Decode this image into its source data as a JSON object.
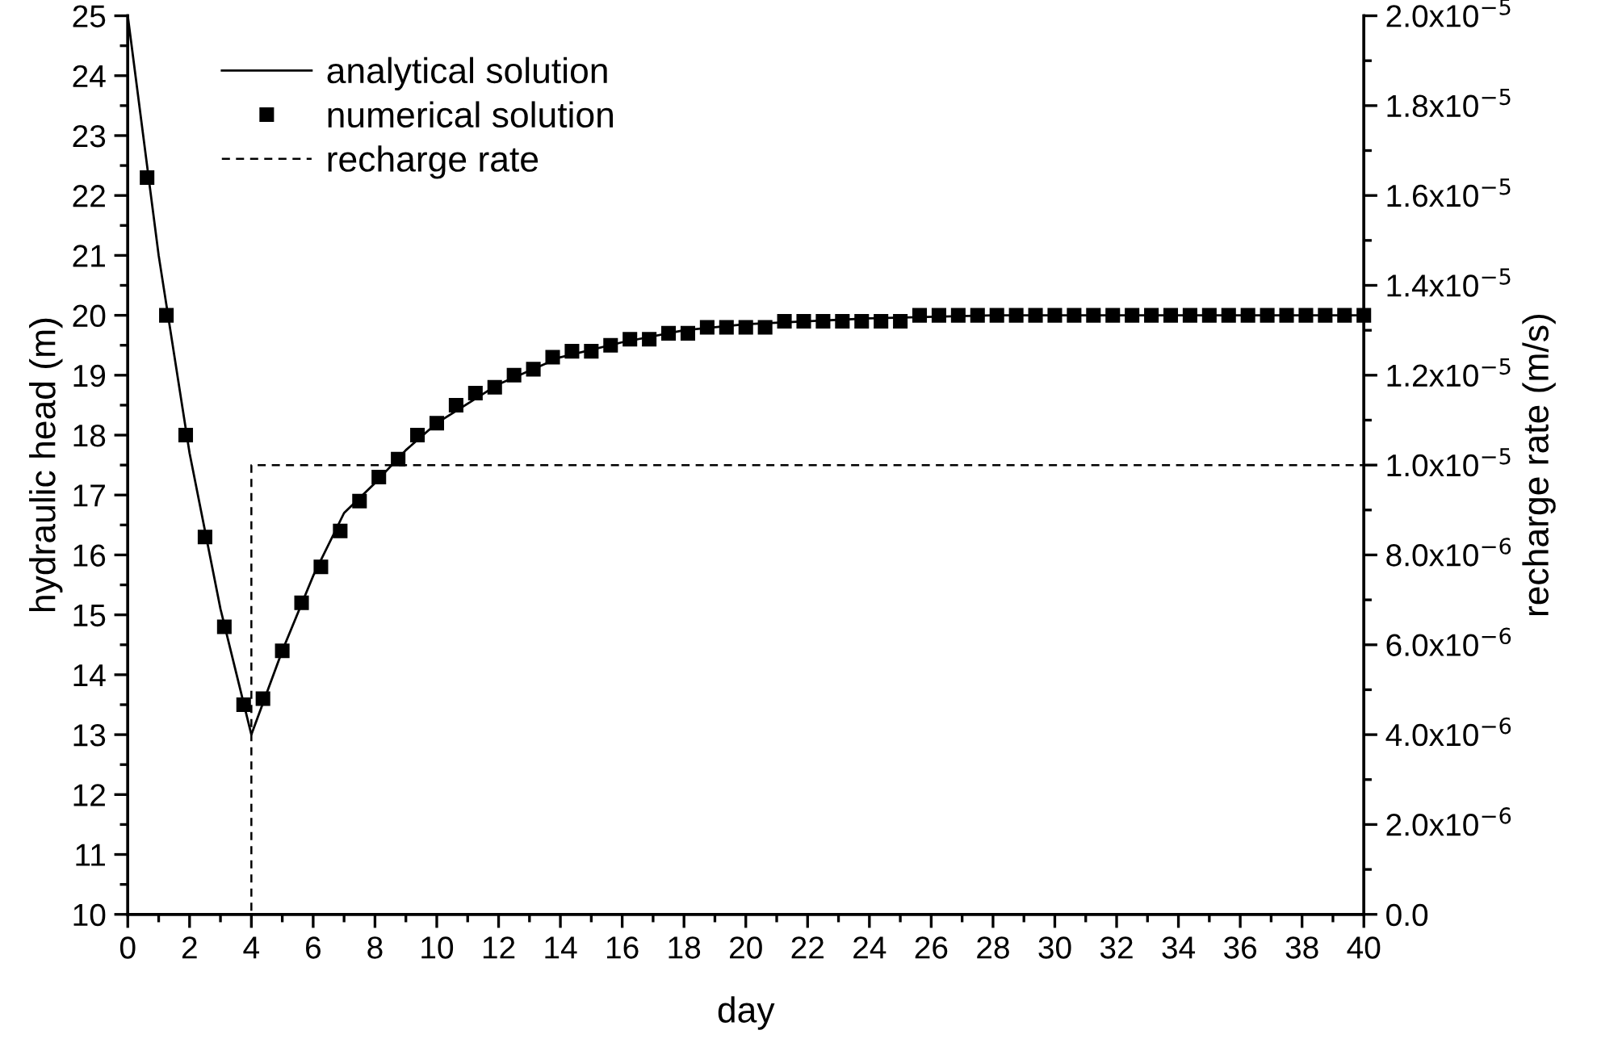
{
  "chart_data": {
    "type": "line",
    "xlabel": "day",
    "ylabel": "hydraulic head (m)",
    "y2label": "recharge rate (m/s)",
    "series": [
      {
        "name": "analytical solution",
        "color": "#000000",
        "marker": "none",
        "line_style": "solid",
        "x": [
          0,
          1,
          2,
          3,
          4,
          5,
          6,
          7,
          8,
          9,
          10,
          12,
          14,
          16,
          18,
          20,
          24,
          28,
          40
        ],
        "values": [
          25,
          21.0,
          17.7,
          15.1,
          13.0,
          14.4,
          15.65,
          16.7,
          17.2,
          17.75,
          18.2,
          18.85,
          19.3,
          19.55,
          19.75,
          19.85,
          19.95,
          20.0,
          20.0
        ]
      },
      {
        "name": "numerical solution",
        "type": "scatter",
        "color": "#000000",
        "marker": "square",
        "x": [
          0.625,
          1.25,
          1.875,
          2.5,
          3.125,
          3.75,
          4.375,
          5.0,
          5.625,
          6.25,
          6.875,
          7.5,
          8.125,
          8.75,
          9.375,
          10.0,
          10.625,
          11.25,
          11.875,
          12.5,
          13.125,
          13.75,
          14.375,
          15.0,
          15.625,
          16.25,
          16.875,
          17.5,
          18.125,
          18.75,
          19.375,
          20.0,
          20.625,
          21.25,
          21.875,
          22.5,
          23.125,
          23.75,
          24.375,
          25.0,
          25.625,
          26.25,
          26.875,
          27.5,
          28.125,
          28.75,
          29.375,
          30.0,
          30.625,
          31.25,
          31.875,
          32.5,
          33.125,
          33.75,
          34.375,
          35.0,
          35.625,
          36.25,
          36.875,
          37.5,
          38.125,
          38.75,
          39.375,
          40.0
        ],
        "values": [
          22.3,
          20.0,
          18.0,
          16.3,
          14.8,
          13.5,
          13.6,
          14.4,
          15.2,
          15.8,
          16.4,
          16.9,
          17.3,
          17.6,
          18.0,
          18.2,
          18.5,
          18.7,
          18.8,
          19.0,
          19.1,
          19.3,
          19.4,
          19.4,
          19.5,
          19.6,
          19.6,
          19.7,
          19.7,
          19.8,
          19.8,
          19.8,
          19.8,
          19.9,
          19.9,
          19.9,
          19.9,
          19.9,
          19.9,
          19.9,
          20.0,
          20.0,
          20.0,
          20.0,
          20.0,
          20.0,
          20.0,
          20.0,
          20.0,
          20.0,
          20.0,
          20.0,
          20.0,
          20.0,
          20.0,
          20.0,
          20.0,
          20.0,
          20.0,
          20.0,
          20.0,
          20.0,
          20.0,
          20.0
        ]
      },
      {
        "name": "recharge rate",
        "type": "step",
        "axis": "y2",
        "color": "#000000",
        "marker": "none",
        "line_style": "dashed",
        "x": [
          0,
          4,
          40
        ],
        "values": [
          0,
          1e-05,
          1e-05
        ]
      }
    ],
    "xlim": [
      0,
      40
    ],
    "xticks": [
      0,
      2,
      4,
      6,
      8,
      10,
      12,
      14,
      16,
      18,
      20,
      22,
      24,
      26,
      28,
      30,
      32,
      34,
      36,
      38,
      40
    ],
    "ylim": [
      10,
      25
    ],
    "yticks": [
      10,
      11,
      12,
      13,
      14,
      15,
      16,
      17,
      18,
      19,
      20,
      21,
      22,
      23,
      24,
      25
    ],
    "y2lim": [
      0,
      2e-05
    ],
    "y2ticks": [
      {
        "value": 0,
        "label": "0.0"
      },
      {
        "value": 2e-06,
        "label": "2.0x10$^{−6}$"
      },
      {
        "value": 4e-06,
        "label": "4.0x10$^{−6}$"
      },
      {
        "value": 6e-06,
        "label": "6.0x10$^{−6}$"
      },
      {
        "value": 8e-06,
        "label": "8.0x10$^{−6}$"
      },
      {
        "value": 1e-05,
        "label": "1.0x10$^{−5}$"
      },
      {
        "value": 1.2e-05,
        "label": "1.2x10$^{−5}$"
      },
      {
        "value": 1.4e-05,
        "label": "1.4x10$^{−5}$"
      },
      {
        "value": 1.6e-05,
        "label": "1.6x10$^{−5}$"
      },
      {
        "value": 1.8e-05,
        "label": "1.8x10$^{−5}$"
      },
      {
        "value": 2e-05,
        "label": "2.0x10$^{−5}$"
      }
    ],
    "grid": false,
    "legend": "top left"
  }
}
